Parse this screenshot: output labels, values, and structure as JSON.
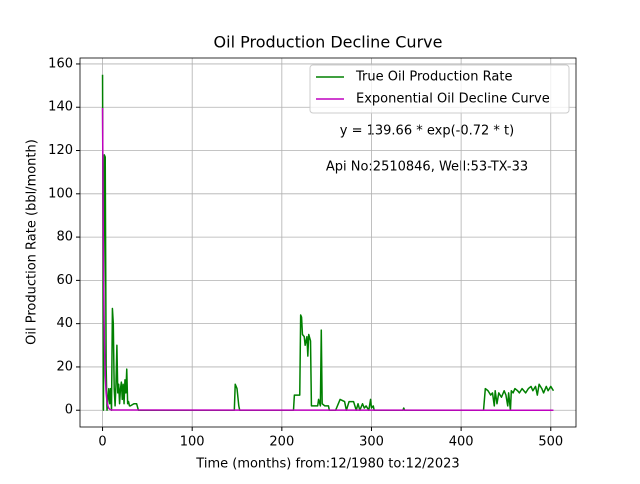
{
  "chart_data": {
    "type": "line",
    "title": "Oil Production Decline Curve",
    "xlabel": "Time (months) from:12/1980 to:12/2023",
    "ylabel": "Oil Production Rate (bbl/month)",
    "annotations": [
      "y = 139.66 * exp(-0.72 * t)",
      "Api No:2510846, Well:53-TX-33"
    ],
    "xlim": [
      -25.15,
      528.15
    ],
    "ylim": [
      -7.75,
      162.75
    ],
    "xticks": [
      0,
      100,
      200,
      300,
      400,
      500
    ],
    "yticks": [
      0,
      20,
      40,
      60,
      80,
      100,
      120,
      140,
      160
    ],
    "grid": true,
    "legend": "upper right",
    "series": [
      {
        "name": "True Oil Production Rate",
        "color": "#008000",
        "x": [
          0,
          1,
          2,
          3,
          4,
          5,
          6,
          7,
          8,
          9,
          10,
          11,
          12,
          13,
          14,
          15,
          16,
          17,
          18,
          19,
          20,
          21,
          22,
          23,
          24,
          25,
          26,
          27,
          28,
          29,
          30,
          31,
          35,
          38,
          40,
          41,
          45,
          147,
          148,
          150,
          152,
          153,
          213,
          214,
          220,
          221,
          222,
          223,
          225,
          226,
          228,
          229,
          230,
          232,
          233,
          240,
          241,
          243,
          244,
          245,
          248,
          252,
          253,
          260,
          265,
          270,
          272,
          275,
          280,
          283,
          285,
          287,
          290,
          292,
          294,
          297,
          299,
          300,
          302,
          303,
          335,
          336,
          337,
          425,
          427,
          430,
          433,
          435,
          437,
          438,
          440,
          442,
          445,
          448,
          450,
          452,
          453,
          455,
          456,
          458,
          460,
          463,
          465,
          468,
          470,
          472,
          475,
          478,
          480,
          483,
          485,
          487,
          490,
          492,
          495,
          497,
          500,
          503
        ],
        "values": [
          155,
          0,
          118,
          117,
          20,
          0,
          5,
          10,
          3,
          10,
          0,
          47,
          40,
          10,
          2,
          12,
          30,
          8,
          12,
          3,
          10,
          13,
          5,
          12,
          3,
          14,
          8,
          19,
          3,
          4,
          2,
          2,
          3,
          3,
          0,
          0,
          0,
          0,
          12,
          10,
          2,
          0,
          0,
          7,
          7,
          44,
          43,
          35,
          34,
          30,
          34,
          25,
          35,
          32,
          2,
          2,
          5,
          2,
          37,
          3,
          2,
          2,
          0,
          0,
          5,
          4,
          0,
          4,
          4,
          0,
          3,
          0,
          3,
          1,
          2,
          0,
          5,
          1,
          2,
          0,
          0,
          1,
          0,
          0,
          10,
          9,
          7,
          8,
          2,
          9,
          3,
          8,
          6,
          9,
          7,
          2,
          8,
          0,
          9,
          8,
          10,
          9,
          8,
          10,
          9,
          8,
          10,
          11,
          9,
          11,
          7,
          12,
          10,
          8,
          11,
          9,
          11,
          9
        ]
      },
      {
        "name": "Exponential Oil Decline Curve",
        "color": "#bf00bf",
        "x": [
          0,
          1,
          2,
          3,
          4,
          5,
          6,
          7,
          8,
          9,
          10,
          503
        ],
        "values": [
          139.66,
          68.15,
          33.25,
          16.23,
          7.92,
          3.86,
          1.89,
          0.92,
          0.45,
          0.22,
          0.1,
          0
        ]
      }
    ]
  }
}
